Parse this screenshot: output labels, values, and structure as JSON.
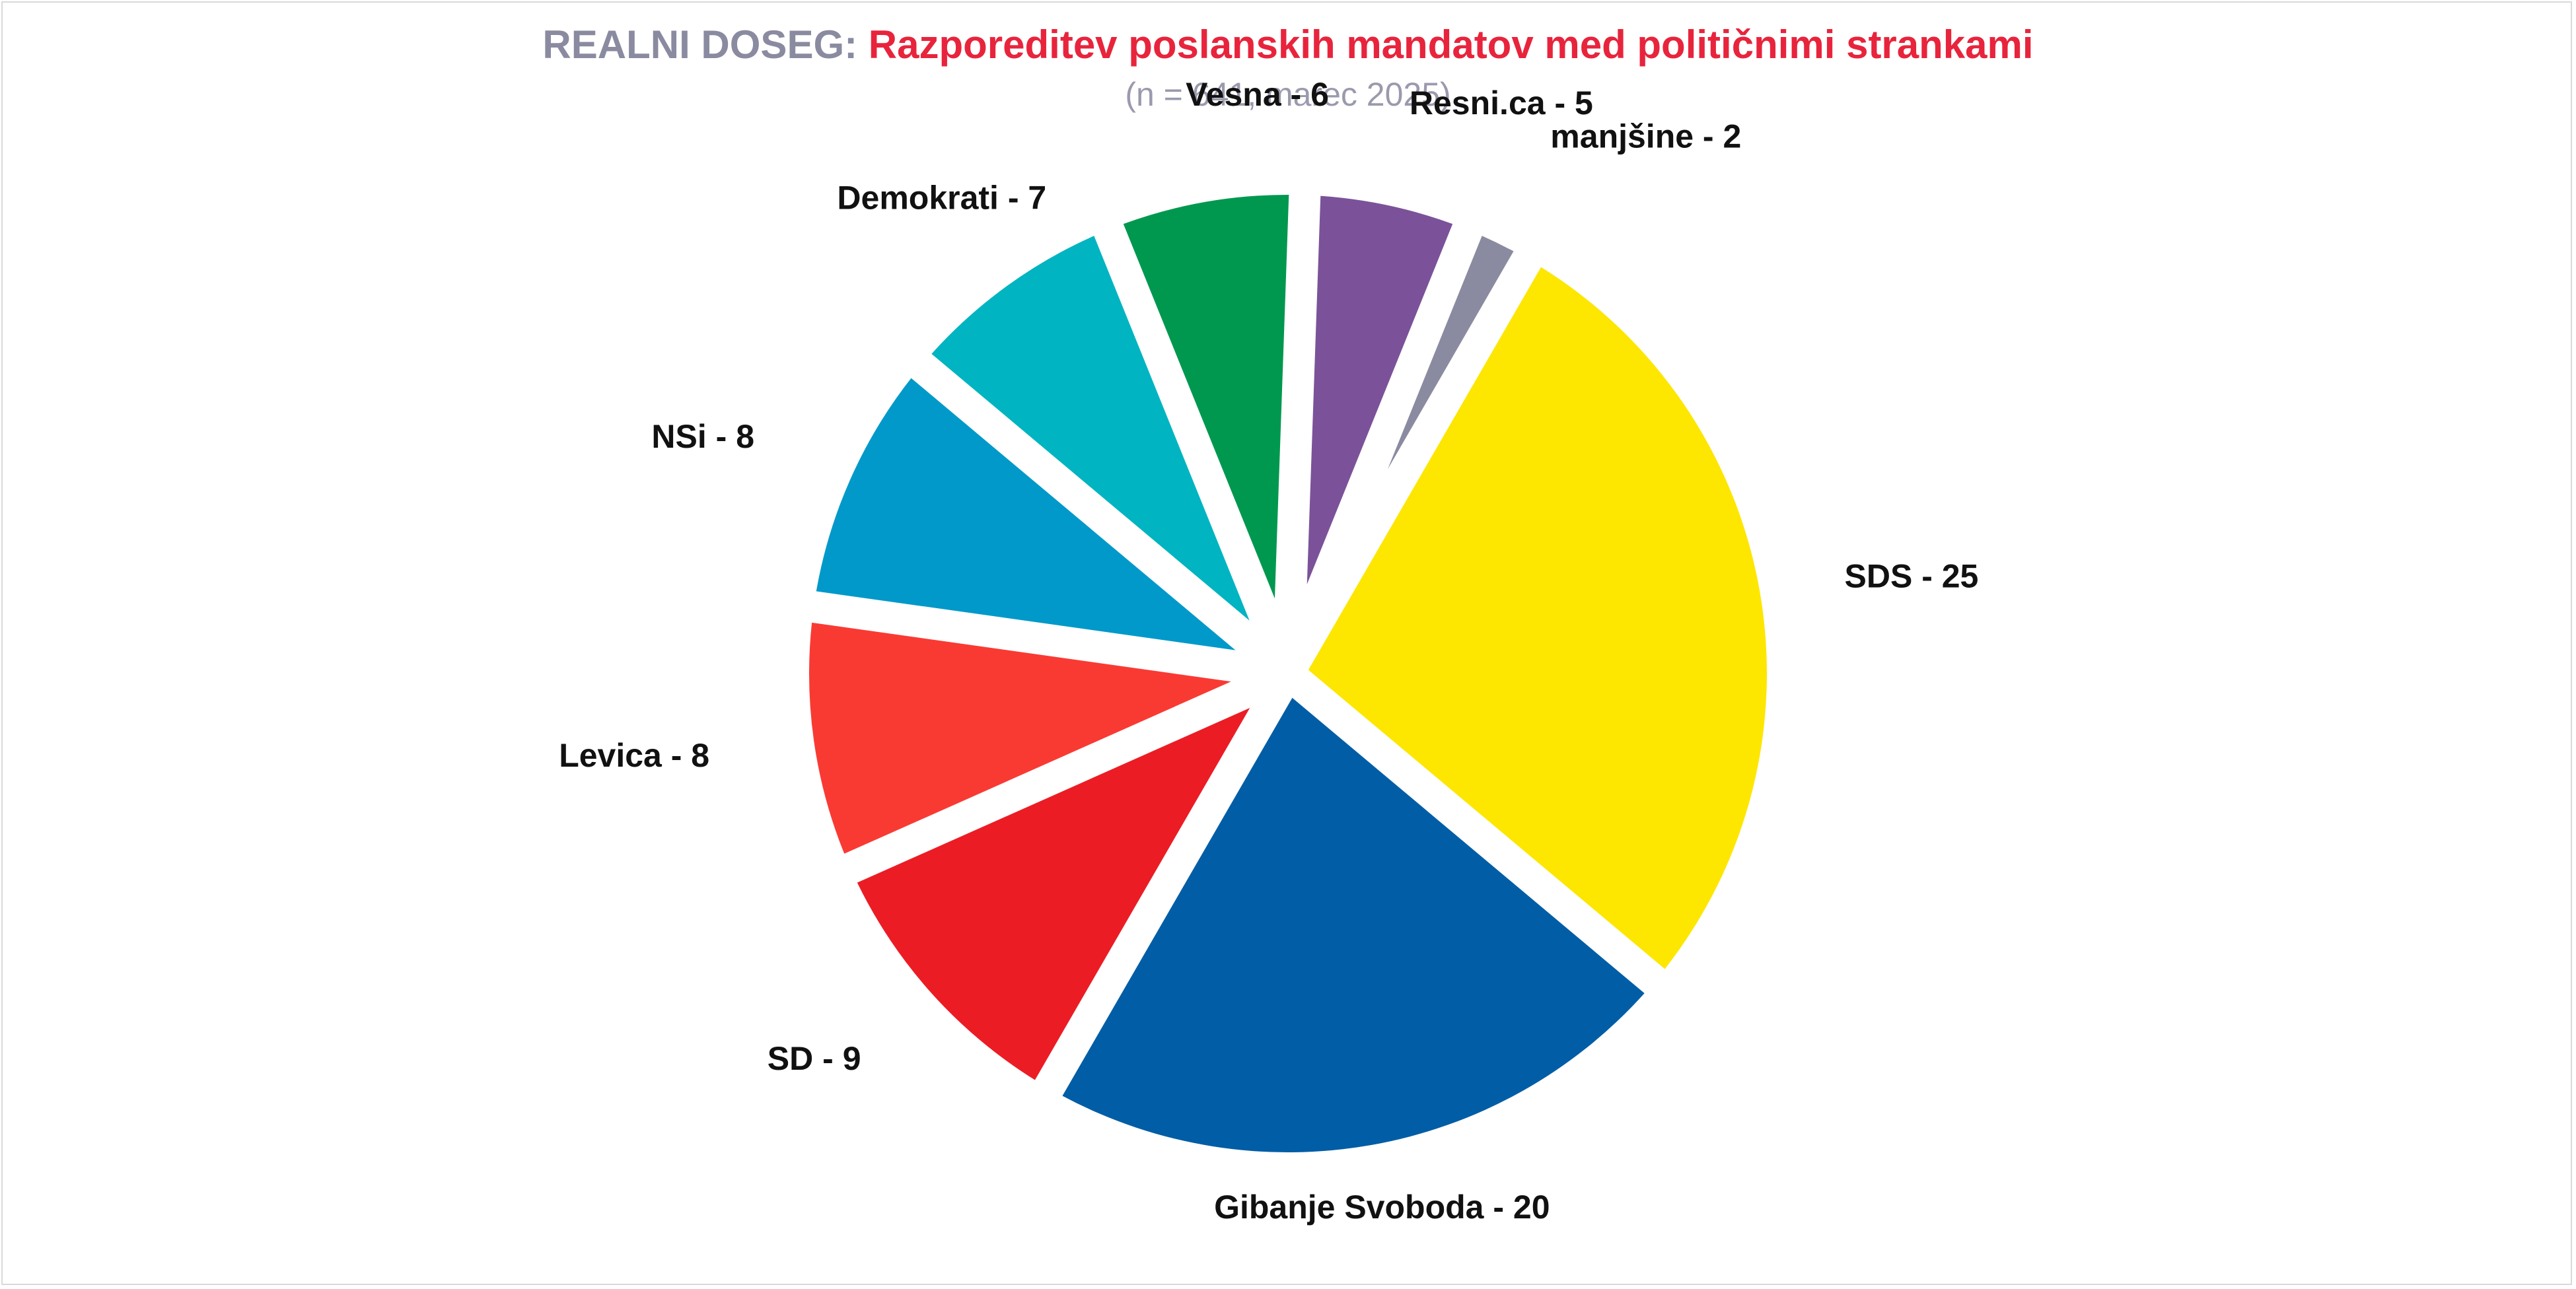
{
  "header": {
    "title_prefix": "REALNI DOSEG:",
    "title_main": "Razporeditev poslanskih mandatov med političnimi strankami",
    "subtitle": "(n = 641, marec 2025)"
  },
  "chart_data": {
    "type": "pie",
    "title": "REALNI DOSEG: Razporeditev poslanskih mandatov med političnimi strankami",
    "subtitle": "(n = 641, marec 2025)",
    "exploded": true,
    "slices": [
      {
        "label": "SDS - 25",
        "value": 25,
        "color": "#fde600"
      },
      {
        "label": "Gibanje Svoboda - 20",
        "value": 20,
        "color": "#005da6"
      },
      {
        "label": "SD - 9",
        "value": 9,
        "color": "#ec1c24"
      },
      {
        "label": "Levica - 8",
        "value": 8,
        "color": "#f93a33"
      },
      {
        "label": "NSi - 8",
        "value": 8,
        "color": "#0099c9"
      },
      {
        "label": "Demokrati - 7",
        "value": 7,
        "color": "#00b4c1"
      },
      {
        "label": "Vesna - 6",
        "value": 6,
        "color": "#00984f"
      },
      {
        "label": "Resni.ca - 5",
        "value": 5,
        "color": "#7b5299"
      },
      {
        "label": "manjšine - 2",
        "value": 2,
        "color": "#8a8aa0"
      }
    ]
  }
}
